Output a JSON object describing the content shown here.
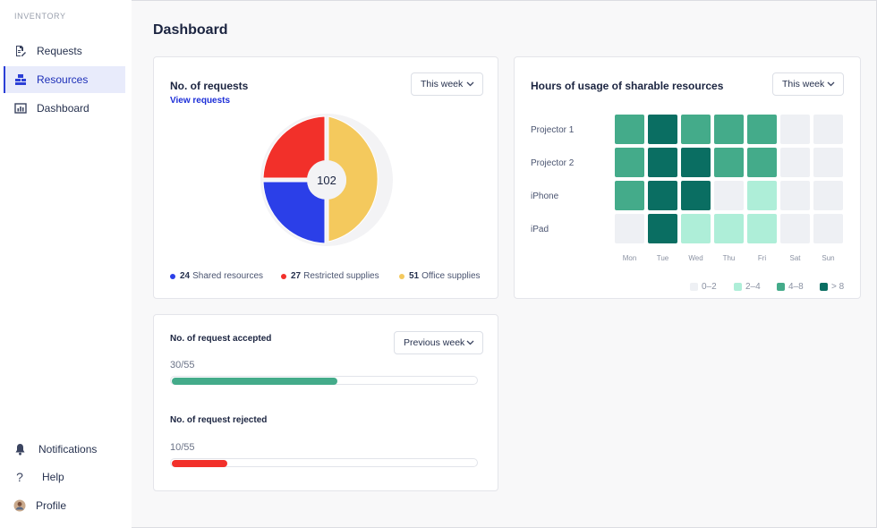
{
  "sidebar": {
    "brand": "INVENTORY",
    "items": [
      {
        "label": "Requests",
        "icon": "document-edit-icon"
      },
      {
        "label": "Resources",
        "icon": "resources-icon",
        "active": true
      },
      {
        "label": "Dashboard",
        "icon": "bar-chart-icon"
      }
    ],
    "bottom": [
      {
        "label": "Notifications",
        "icon": "bell-icon"
      },
      {
        "label": "Help",
        "icon": "question-icon"
      },
      {
        "label": "Profile",
        "icon": "avatar"
      }
    ]
  },
  "page": {
    "title": "Dashboard"
  },
  "requests_card": {
    "title": "No. of requests",
    "link": "View requests",
    "dropdown": "This week",
    "total": "102",
    "legend": [
      {
        "value": "24",
        "label": "Shared resources",
        "color": "#2b3fe8"
      },
      {
        "value": "27",
        "label": "Restricted supplies",
        "color": "#f2302a"
      },
      {
        "value": "51",
        "label": "Office supplies",
        "color": "#f4c95d"
      }
    ]
  },
  "usage_card": {
    "title": "Hours of usage of sharable resources",
    "dropdown": "This week",
    "rows": [
      "Projector 1",
      "Projector 2",
      "iPhone",
      "iPad"
    ],
    "days": [
      "Mon",
      "Tue",
      "Wed",
      "Thu",
      "Fri",
      "Sat",
      "Sun"
    ],
    "levels": [
      [
        2,
        3,
        2,
        2,
        2,
        0,
        0
      ],
      [
        2,
        3,
        3,
        2,
        2,
        0,
        0
      ],
      [
        2,
        3,
        3,
        0,
        1,
        0,
        0
      ],
      [
        0,
        3,
        1,
        1,
        1,
        0,
        0
      ]
    ],
    "level_colors": [
      "#eef0f4",
      "#aeeed8",
      "#44ab8a",
      "#0a6e62"
    ],
    "legend": [
      {
        "label": "0–2",
        "color": "#eef0f4"
      },
      {
        "label": "2–4",
        "color": "#aeeed8"
      },
      {
        "label": "4–8",
        "color": "#44ab8a"
      },
      {
        "label": "> 8",
        "color": "#0a6e62"
      }
    ]
  },
  "acceptance_card": {
    "dropdown": "Previous week",
    "accepted": {
      "title": "No. of request accepted",
      "ratio": "30/55",
      "value": 30,
      "max": 55,
      "color": "#44ab8a"
    },
    "rejected": {
      "title": "No. of request rejected",
      "ratio": "10/55",
      "value": 10,
      "max": 55,
      "color": "#f2302a"
    }
  }
}
